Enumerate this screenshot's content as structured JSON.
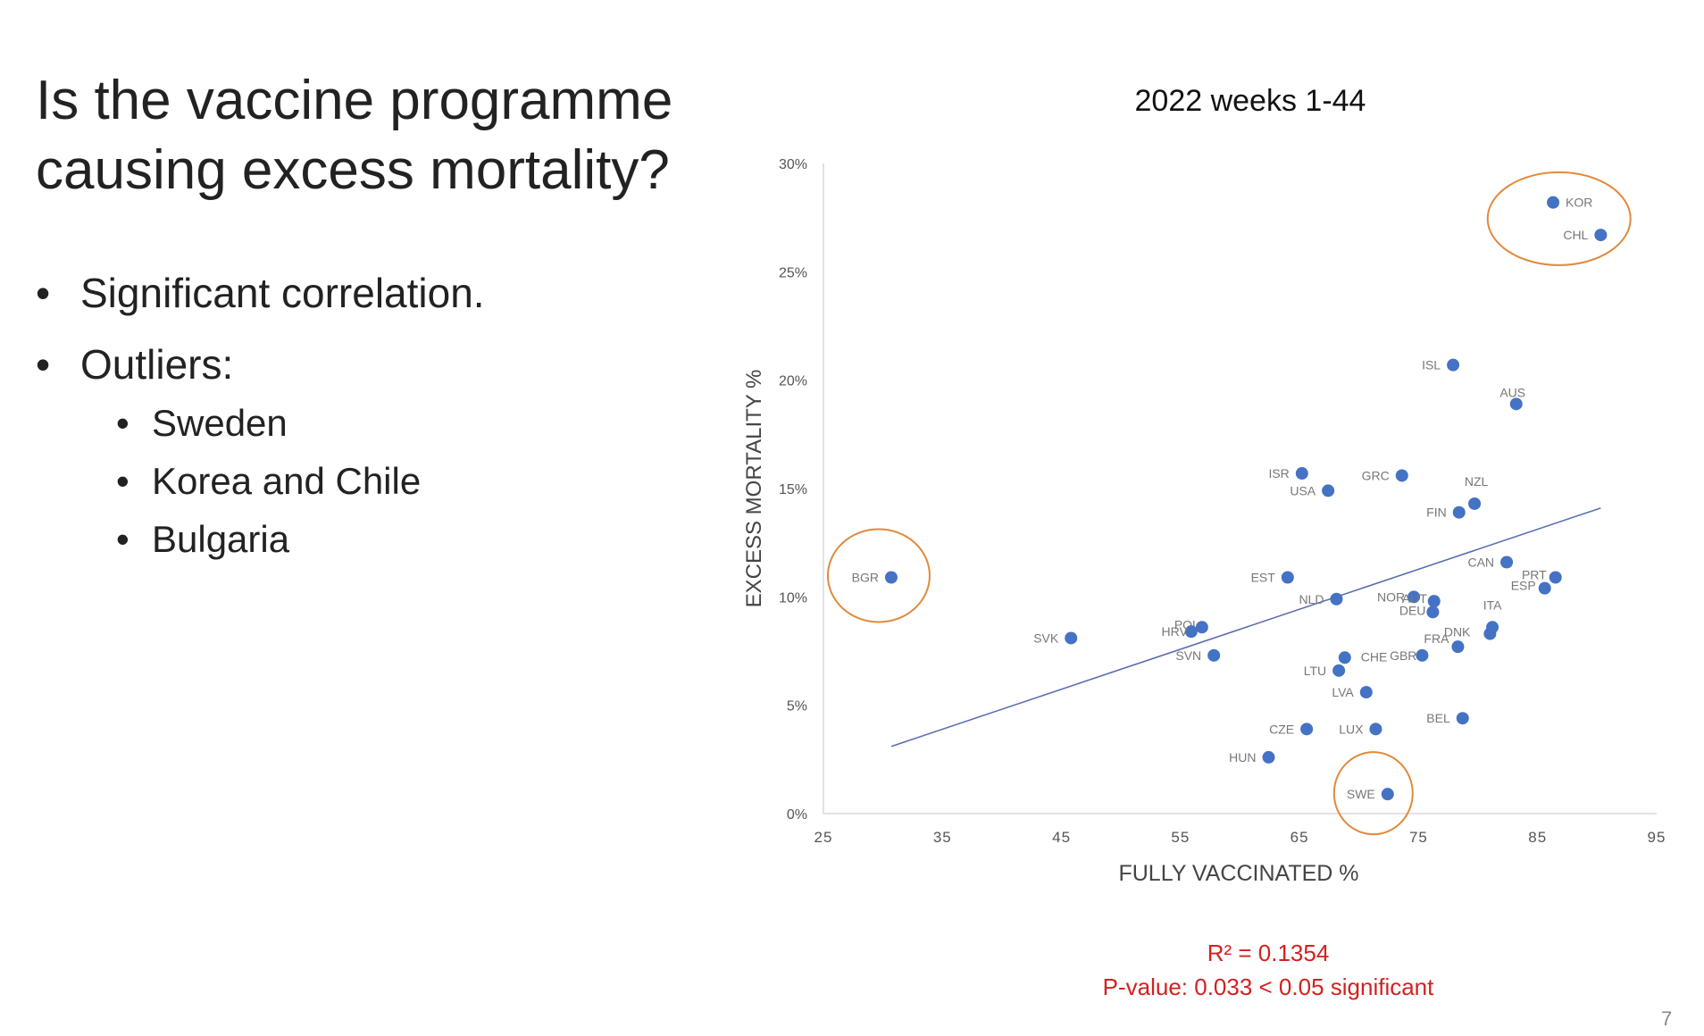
{
  "slide": {
    "title": "Is the vaccine programme causing excess mortality?",
    "bullets": [
      "Significant correlation.",
      "Outliers:"
    ],
    "sub_bullets": [
      "Sweden",
      "Korea and Chile",
      "Bulgaria"
    ],
    "page_number": "7"
  },
  "stats": {
    "r_squared": "R² = 0.1354",
    "p_value": "P-value: 0.033 < 0.05 significant"
  },
  "colors": {
    "points": "#4472c4",
    "trendline": "#5b6fb0",
    "circles": "#e08a3c",
    "stats": "#d42020",
    "axis": "#d9d9d9"
  },
  "chart_data": {
    "type": "scatter",
    "title": "2022 weeks 1-44",
    "xlabel": "FULLY VACCINATED %",
    "ylabel": "EXCESS MORTALITY %",
    "xlim": [
      25,
      95
    ],
    "ylim": [
      0,
      30
    ],
    "x_ticks": [
      "25",
      "35",
      "45",
      "55",
      "65",
      "75",
      "85",
      "95"
    ],
    "y_ticks": [
      "0%",
      "5%",
      "10%",
      "15%",
      "20%",
      "25%",
      "30%"
    ],
    "grid": false,
    "legend": "none",
    "points": [
      {
        "label": "KOR",
        "x": 86.3,
        "y": 28.2
      },
      {
        "label": "CHL",
        "x": 90.3,
        "y": 26.7
      },
      {
        "label": "ISL",
        "x": 77.9,
        "y": 20.7
      },
      {
        "label": "AUS",
        "x": 83.2,
        "y": 18.9
      },
      {
        "label": "ISR",
        "x": 65.2,
        "y": 15.7
      },
      {
        "label": "GRC",
        "x": 73.6,
        "y": 15.6
      },
      {
        "label": "USA",
        "x": 67.4,
        "y": 14.9
      },
      {
        "label": "NZL",
        "x": 79.7,
        "y": 14.3
      },
      {
        "label": "FIN",
        "x": 78.4,
        "y": 13.9
      },
      {
        "label": "CAN",
        "x": 82.4,
        "y": 11.6
      },
      {
        "label": "PRT",
        "x": 86.5,
        "y": 10.9
      },
      {
        "label": "ESP",
        "x": 85.6,
        "y": 10.4
      },
      {
        "label": "BGR",
        "x": 30.7,
        "y": 10.9
      },
      {
        "label": "EST",
        "x": 64.0,
        "y": 10.9
      },
      {
        "label": "NLD",
        "x": 68.1,
        "y": 9.9
      },
      {
        "label": "NOR",
        "x": 74.6,
        "y": 10.0
      },
      {
        "label": "AUT",
        "x": 76.3,
        "y": 9.8
      },
      {
        "label": "DEU",
        "x": 76.2,
        "y": 9.3
      },
      {
        "label": "ITA",
        "x": 81.2,
        "y": 8.6
      },
      {
        "label": "DNK",
        "x": 81.0,
        "y": 8.3
      },
      {
        "label": "POL",
        "x": 56.8,
        "y": 8.6
      },
      {
        "label": "HRV",
        "x": 55.9,
        "y": 8.4
      },
      {
        "label": "SVK",
        "x": 45.8,
        "y": 8.1
      },
      {
        "label": "SVN",
        "x": 57.8,
        "y": 7.3
      },
      {
        "label": "FRA",
        "x": 78.3,
        "y": 7.7
      },
      {
        "label": "GBR",
        "x": 75.3,
        "y": 7.3
      },
      {
        "label": "CHE",
        "x": 68.8,
        "y": 7.2
      },
      {
        "label": "LTU",
        "x": 68.3,
        "y": 6.6
      },
      {
        "label": "LVA",
        "x": 70.6,
        "y": 5.6
      },
      {
        "label": "BEL",
        "x": 78.7,
        "y": 4.4
      },
      {
        "label": "CZE",
        "x": 65.6,
        "y": 3.9
      },
      {
        "label": "LUX",
        "x": 71.4,
        "y": 3.9
      },
      {
        "label": "HUN",
        "x": 62.4,
        "y": 2.6
      },
      {
        "label": "SWE",
        "x": 72.4,
        "y": 0.9
      }
    ],
    "trendline": {
      "x": [
        30.7,
        90.3
      ],
      "y": [
        3.1,
        14.1
      ]
    },
    "highlighted": [
      "KOR",
      "CHL",
      "BGR",
      "SWE"
    ]
  }
}
